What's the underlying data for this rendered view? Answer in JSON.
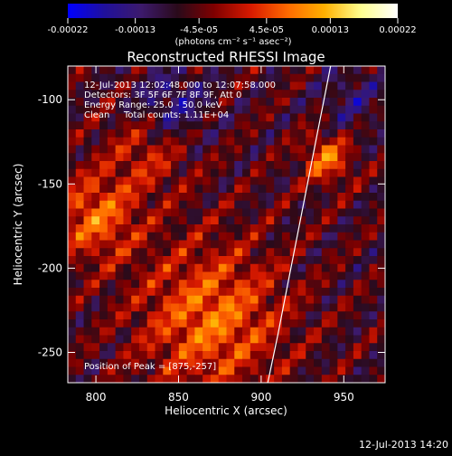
{
  "colorbar": {
    "ticks": [
      "-0.00022",
      "-0.00013",
      "-4.5e-05",
      "4.5e-05",
      "0.00013",
      "0.00022"
    ],
    "tick_values": [
      -0.00022,
      -0.00013,
      -4.5e-05,
      4.5e-05,
      0.00013,
      0.00022
    ],
    "range": [
      -0.00022,
      0.00022
    ],
    "units_label": "(photons cm⁻² s⁻¹ asec⁻²)",
    "stops": [
      "#0000ff",
      "#20109c",
      "#3c1a6c",
      "#2a0a1a",
      "#800000",
      "#d81a00",
      "#ff6a00",
      "#ffb000",
      "#ffff90",
      "#ffffff"
    ]
  },
  "chart_data": {
    "type": "heatmap",
    "title": "Reconstructed RHESSI Image",
    "xlabel": "Heliocentric X (arcsec)",
    "ylabel": "Heliocentric Y (arcsec)",
    "xlim": [
      783,
      975
    ],
    "ylim": [
      -268,
      -80
    ],
    "xticks": [
      800,
      850,
      900,
      950
    ],
    "yticks": [
      -100,
      -150,
      -200,
      -250
    ],
    "annotations": {
      "time_range": "12-Jul-2013 12:02:48.000 to 12:07:58.000",
      "detectors": "Detectors: 3F 5F 6F 7F 8F 9F, Att 0",
      "energy": "Energy Range: 25.0 - 50.0 keV",
      "algorithm": "Clean",
      "total_counts": "Total counts: 1.11E+04",
      "peak": "Position of Peak = [875,-257]"
    },
    "limb": {
      "x": [
        904,
        910,
        916,
        922,
        928,
        934,
        938,
        942
      ],
      "y": [
        -268,
        -240,
        -210,
        -180,
        -150,
        -120,
        -100,
        -80
      ]
    }
  },
  "footer": {
    "timestamp": "12-Jul-2013 14:20"
  }
}
